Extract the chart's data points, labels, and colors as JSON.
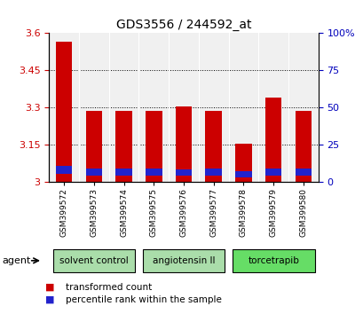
{
  "title": "GDS3556 / 244592_at",
  "samples": [
    "GSM399572",
    "GSM399573",
    "GSM399574",
    "GSM399575",
    "GSM399576",
    "GSM399577",
    "GSM399578",
    "GSM399579",
    "GSM399580"
  ],
  "transformed_counts": [
    3.565,
    3.285,
    3.285,
    3.285,
    3.305,
    3.285,
    3.155,
    3.34,
    3.285
  ],
  "percentile_bottoms": [
    3.035,
    3.025,
    3.025,
    3.025,
    3.025,
    3.025,
    3.02,
    3.025,
    3.025
  ],
  "percentile_tops": [
    3.065,
    3.055,
    3.055,
    3.055,
    3.05,
    3.055,
    3.045,
    3.055,
    3.055
  ],
  "bar_bottom": 3.0,
  "ylim_left": [
    3.0,
    3.6
  ],
  "ylim_right": [
    0,
    100
  ],
  "yticks_left": [
    3.0,
    3.15,
    3.3,
    3.45,
    3.6
  ],
  "yticks_right": [
    0,
    25,
    50,
    75,
    100
  ],
  "ytick_labels_left": [
    "3",
    "3.15",
    "3.3",
    "3.45",
    "3.6"
  ],
  "ytick_labels_right": [
    "0",
    "25",
    "50",
    "75",
    "100%"
  ],
  "red_color": "#cc0000",
  "blue_color": "#2222cc",
  "agent_groups": [
    {
      "label": "solvent control",
      "start": 0,
      "end": 2,
      "color": "#aaddaa"
    },
    {
      "label": "angiotensin II",
      "start": 3,
      "end": 5,
      "color": "#aaddaa"
    },
    {
      "label": "torcetrapib",
      "start": 6,
      "end": 8,
      "color": "#66dd66"
    }
  ],
  "legend_items": [
    {
      "color": "#cc0000",
      "label": "transformed count"
    },
    {
      "color": "#2222cc",
      "label": "percentile rank within the sample"
    }
  ],
  "tick_color_left": "#cc0000",
  "tick_color_right": "#0000bb",
  "bar_width": 0.55,
  "agent_label": "agent",
  "bg_color": "#f0f0f0"
}
